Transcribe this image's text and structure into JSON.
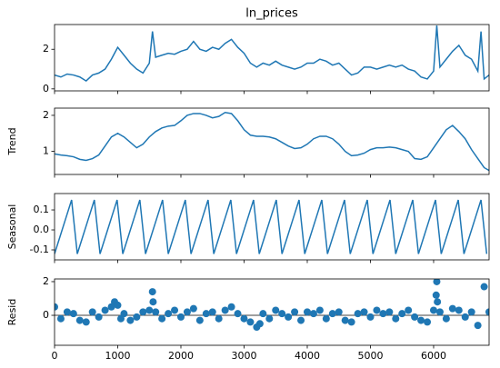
{
  "chart_data": [
    {
      "type": "line",
      "title": "ln_prices",
      "color": "#1f77b4",
      "x": [
        0,
        100,
        200,
        300,
        400,
        500,
        600,
        700,
        800,
        900,
        1000,
        1100,
        1200,
        1300,
        1400,
        1500,
        1550,
        1600,
        1700,
        1800,
        1900,
        2000,
        2100,
        2200,
        2300,
        2400,
        2500,
        2600,
        2700,
        2800,
        2900,
        3000,
        3100,
        3200,
        3300,
        3400,
        3500,
        3600,
        3700,
        3800,
        3900,
        4000,
        4100,
        4200,
        4300,
        4400,
        4500,
        4600,
        4700,
        4800,
        4900,
        5000,
        5100,
        5200,
        5300,
        5400,
        5500,
        5600,
        5700,
        5800,
        5900,
        6000,
        6050,
        6100,
        6200,
        6300,
        6400,
        6500,
        6600,
        6700,
        6750,
        6800,
        6878
      ],
      "values": [
        0.7,
        0.6,
        0.75,
        0.7,
        0.6,
        0.4,
        0.7,
        0.8,
        1.0,
        1.5,
        2.1,
        1.7,
        1.3,
        1.0,
        0.8,
        1.3,
        2.9,
        1.6,
        1.7,
        1.8,
        1.75,
        1.9,
        2.0,
        2.4,
        2.0,
        1.9,
        2.1,
        2.0,
        2.3,
        2.5,
        2.1,
        1.8,
        1.3,
        1.1,
        1.3,
        1.2,
        1.4,
        1.2,
        1.1,
        1.0,
        1.1,
        1.3,
        1.3,
        1.5,
        1.4,
        1.2,
        1.3,
        1.0,
        0.7,
        0.8,
        1.1,
        1.1,
        1.0,
        1.1,
        1.2,
        1.1,
        1.2,
        1.0,
        0.9,
        0.6,
        0.5,
        0.9,
        3.2,
        1.1,
        1.5,
        1.9,
        2.2,
        1.7,
        1.5,
        0.9,
        2.9,
        0.5,
        0.7
      ],
      "ylim": [
        -0.1,
        3.25
      ],
      "yticks": [
        0,
        2
      ]
    },
    {
      "type": "line",
      "ylabel": "Trend",
      "color": "#1f77b4",
      "x": [
        0,
        100,
        200,
        300,
        400,
        500,
        600,
        700,
        800,
        900,
        1000,
        1100,
        1200,
        1300,
        1400,
        1500,
        1600,
        1700,
        1800,
        1900,
        2000,
        2100,
        2200,
        2300,
        2400,
        2500,
        2600,
        2700,
        2800,
        2900,
        3000,
        3100,
        3200,
        3300,
        3400,
        3500,
        3600,
        3700,
        3800,
        3900,
        4000,
        4100,
        4200,
        4300,
        4400,
        4500,
        4600,
        4700,
        4800,
        4900,
        5000,
        5100,
        5200,
        5300,
        5400,
        5500,
        5600,
        5700,
        5800,
        5900,
        6000,
        6100,
        6200,
        6300,
        6400,
        6500,
        6600,
        6700,
        6800,
        6878
      ],
      "values": [
        0.93,
        0.9,
        0.88,
        0.85,
        0.78,
        0.75,
        0.8,
        0.9,
        1.15,
        1.4,
        1.5,
        1.4,
        1.25,
        1.1,
        1.2,
        1.4,
        1.55,
        1.65,
        1.7,
        1.72,
        1.85,
        2.0,
        2.05,
        2.05,
        2.0,
        1.93,
        1.97,
        2.08,
        2.05,
        1.85,
        1.6,
        1.45,
        1.42,
        1.42,
        1.4,
        1.35,
        1.25,
        1.15,
        1.08,
        1.1,
        1.2,
        1.35,
        1.42,
        1.42,
        1.35,
        1.2,
        1.0,
        0.88,
        0.9,
        0.95,
        1.05,
        1.1,
        1.1,
        1.12,
        1.1,
        1.05,
        1.0,
        0.8,
        0.78,
        0.85,
        1.1,
        1.35,
        1.6,
        1.72,
        1.55,
        1.35,
        1.05,
        0.8,
        0.55,
        0.47
      ],
      "ylim": [
        0.36,
        2.2
      ],
      "yticks": [
        1,
        2
      ]
    },
    {
      "type": "line",
      "ylabel": "Seasonal",
      "color": "#1f77b4",
      "x": [
        0,
        90,
        180,
        270,
        360,
        450,
        540,
        630,
        720,
        810,
        900,
        990,
        1080,
        1170,
        1260,
        1350,
        1440,
        1530,
        1620,
        1710,
        1800,
        1890,
        1980,
        2070,
        2160,
        2250,
        2340,
        2430,
        2520,
        2610,
        2700,
        2790,
        2880,
        2970,
        3060,
        3150,
        3240,
        3330,
        3420,
        3510,
        3600,
        3690,
        3780,
        3870,
        3960,
        4050,
        4140,
        4230,
        4320,
        4410,
        4500,
        4590,
        4680,
        4770,
        4860,
        4950,
        5040,
        5130,
        5220,
        5310,
        5400,
        5490,
        5580,
        5670,
        5760,
        5850,
        5940,
        6030,
        6120,
        6210,
        6300,
        6390,
        6480,
        6570,
        6660,
        6750,
        6840
      ],
      "values": [
        -0.12,
        -0.03,
        0.06,
        0.15,
        -0.12,
        -0.03,
        0.06,
        0.15,
        -0.12,
        -0.03,
        0.06,
        0.15,
        -0.12,
        -0.03,
        0.06,
        0.15,
        -0.12,
        -0.03,
        0.06,
        0.15,
        -0.12,
        -0.03,
        0.06,
        0.15,
        -0.12,
        -0.03,
        0.06,
        0.15,
        -0.12,
        -0.03,
        0.06,
        0.15,
        -0.12,
        -0.03,
        0.06,
        0.15,
        -0.12,
        -0.03,
        0.06,
        0.15,
        -0.12,
        -0.03,
        0.06,
        0.15,
        -0.12,
        -0.03,
        0.06,
        0.15,
        -0.12,
        -0.03,
        0.06,
        0.15,
        -0.12,
        -0.03,
        0.06,
        0.15,
        -0.12,
        -0.03,
        0.06,
        0.15,
        -0.12,
        -0.03,
        0.06,
        0.15,
        -0.12,
        -0.03,
        0.06,
        0.15,
        -0.12,
        -0.03,
        0.06,
        0.15,
        -0.12,
        -0.03,
        0.06,
        0.15,
        -0.12
      ],
      "ylim": [
        -0.15,
        0.182
      ],
      "yticks": [
        -0.1,
        {
          "value": 0,
          "label": "0.0"
        },
        0.1
      ]
    },
    {
      "type": "scatter",
      "ylabel": "Resid",
      "color": "#1f77b4",
      "x": [
        0,
        100,
        200,
        300,
        400,
        500,
        600,
        700,
        800,
        900,
        950,
        1000,
        1050,
        1100,
        1200,
        1300,
        1400,
        1500,
        1550,
        1560,
        1600,
        1700,
        1800,
        1900,
        2000,
        2100,
        2200,
        2300,
        2400,
        2500,
        2600,
        2700,
        2800,
        2900,
        3000,
        3100,
        3200,
        3250,
        3300,
        3400,
        3500,
        3600,
        3700,
        3800,
        3900,
        4000,
        4100,
        4200,
        4300,
        4400,
        4500,
        4600,
        4700,
        4800,
        4900,
        5000,
        5100,
        5200,
        5300,
        5400,
        5500,
        5600,
        5700,
        5800,
        5900,
        6000,
        6040,
        6050,
        6060,
        6100,
        6200,
        6300,
        6400,
        6500,
        6600,
        6700,
        6800,
        6878
      ],
      "values": [
        0.5,
        -0.2,
        0.2,
        0.1,
        -0.3,
        -0.4,
        0.2,
        -0.1,
        0.3,
        0.5,
        0.8,
        0.6,
        -0.2,
        0.1,
        -0.3,
        -0.1,
        0.2,
        0.3,
        1.4,
        0.8,
        0.2,
        -0.2,
        0.1,
        0.3,
        -0.1,
        0.2,
        0.4,
        -0.3,
        0.1,
        0.2,
        -0.2,
        0.3,
        0.5,
        0.1,
        -0.2,
        -0.4,
        -0.7,
        -0.5,
        0.1,
        -0.2,
        0.3,
        0.1,
        -0.1,
        0.2,
        -0.3,
        0.2,
        0.1,
        0.3,
        -0.2,
        0.1,
        0.2,
        -0.3,
        -0.4,
        0.1,
        0.2,
        -0.1,
        0.3,
        0.1,
        0.2,
        -0.2,
        0.1,
        0.3,
        -0.1,
        -0.3,
        -0.4,
        0.3,
        1.2,
        2.0,
        0.8,
        0.2,
        -0.2,
        0.4,
        0.3,
        -0.1,
        0.2,
        -0.6,
        1.7,
        0.2
      ],
      "ylim": [
        -1.78,
        2.16
      ],
      "yticks": [
        0,
        2
      ],
      "xlim": [
        0,
        6878
      ],
      "xticks": [
        0,
        1000,
        2000,
        3000,
        4000,
        5000,
        6000
      ]
    }
  ]
}
